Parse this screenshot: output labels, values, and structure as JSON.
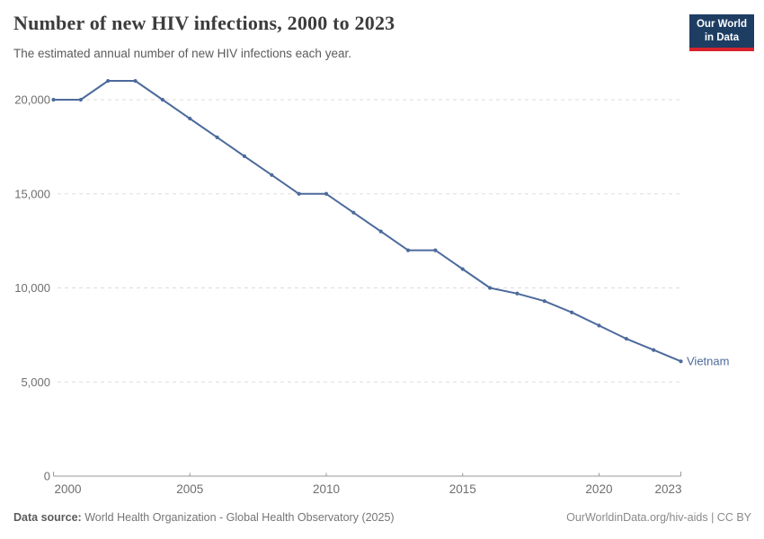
{
  "header": {
    "title": "Number of new HIV infections, 2000 to 2023",
    "subtitle": "The estimated annual number of new HIV infections each year.",
    "logo_line1": "Our World",
    "logo_line2": "in Data"
  },
  "chart_data": {
    "type": "line",
    "title": "Number of new HIV infections, 2000 to 2023",
    "entity": "Vietnam",
    "x": [
      2000,
      2001,
      2002,
      2003,
      2004,
      2005,
      2006,
      2007,
      2008,
      2009,
      2010,
      2011,
      2012,
      2013,
      2014,
      2015,
      2016,
      2017,
      2018,
      2019,
      2020,
      2021,
      2022,
      2023
    ],
    "series": [
      {
        "name": "Vietnam",
        "color": "#4c6a9c",
        "values": [
          20000,
          20000,
          21000,
          21000,
          20000,
          19000,
          18000,
          17000,
          16000,
          15000,
          15000,
          14000,
          13000,
          12000,
          12000,
          11000,
          10000,
          9700,
          9300,
          8700,
          8000,
          7300,
          6700,
          6100
        ]
      }
    ],
    "xlim": [
      2000,
      2023
    ],
    "ylim": [
      0,
      21000
    ],
    "xticks": [
      2000,
      2005,
      2010,
      2015,
      2020,
      2023
    ],
    "yticks": [
      0,
      5000,
      10000,
      15000,
      20000
    ],
    "ytick_labels": [
      "0",
      "5,000",
      "10,000",
      "15,000",
      "20,000"
    ],
    "grid": "horizontal-dashed",
    "legend_position": "entity-label-at-line-end",
    "marker": "circle"
  },
  "footer": {
    "datasource_label": "Data source:",
    "datasource_text": " World Health Organization - Global Health Observatory (2025)",
    "link_text": "OurWorldinData.org/hiv-aids | CC BY"
  },
  "colors": {
    "line": "#4c6a9c",
    "entity_label": "#4c6a9c",
    "gridline": "#dddddd",
    "axis": "#999999",
    "tick_label": "#6e6e6e",
    "title": "#3c3c3c",
    "subtitle": "#5b5b5b",
    "logo_bg": "#1d3d63",
    "logo_accent": "#d8222c"
  }
}
